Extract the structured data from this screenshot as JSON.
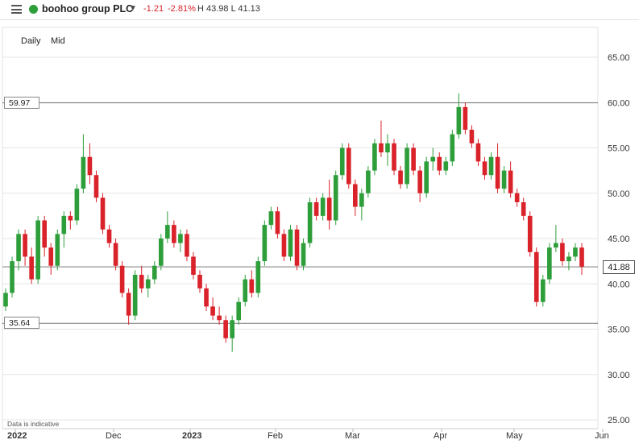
{
  "header": {
    "menu_icon": "hamburger-icon",
    "status_icon": "green-dot-icon",
    "instrument": "boohoo group PLC",
    "change": "-1.21",
    "change_pct": "-2.81%",
    "high_low": "H 43.98 L 41.13",
    "colors": {
      "up": "#2e9e3a",
      "down": "#d9222a",
      "status": "#2e9e3a"
    }
  },
  "periods": [
    "Daily",
    "Mid"
  ],
  "disclaimer": "Data is indicative",
  "chart_data": {
    "type": "candlestick",
    "y_axis": {
      "min": 25,
      "max": 67,
      "ticks": [
        "25.00",
        "30.00",
        "35.00",
        "40.00",
        "45.00",
        "50.00",
        "55.00",
        "60.00",
        "65.00"
      ],
      "position": "right"
    },
    "x_axis": {
      "labels": [
        "2022",
        "Dec",
        "2023",
        "Feb",
        "Mar",
        "Apr",
        "May",
        "Jun"
      ]
    },
    "horizontal_lines": [
      {
        "value": 59.97,
        "label": "59.97"
      },
      {
        "value": 35.64,
        "label": "35.64"
      },
      {
        "value": 41.88,
        "label": "41.88",
        "kind": "last"
      }
    ],
    "candles": [
      [
        37.5,
        39.5,
        37.0,
        39.0
      ],
      [
        39.0,
        43.0,
        38.5,
        42.5
      ],
      [
        42.5,
        46.0,
        41.5,
        45.5
      ],
      [
        45.5,
        46.0,
        42.0,
        43.0
      ],
      [
        43.0,
        44.0,
        40.0,
        40.5
      ],
      [
        40.5,
        47.5,
        40.0,
        47.0
      ],
      [
        47.0,
        47.5,
        43.0,
        44.0
      ],
      [
        44.0,
        44.5,
        41.0,
        42.0
      ],
      [
        42.0,
        46.0,
        41.5,
        45.5
      ],
      [
        45.5,
        48.0,
        44.0,
        47.5
      ],
      [
        47.5,
        48.0,
        46.0,
        47.0
      ],
      [
        47.0,
        51.0,
        46.5,
        50.5
      ],
      [
        50.5,
        56.5,
        50.0,
        54.0
      ],
      [
        54.0,
        55.5,
        51.0,
        52.0
      ],
      [
        52.0,
        52.5,
        49.0,
        49.5
      ],
      [
        49.5,
        50.0,
        45.5,
        46.0
      ],
      [
        46.0,
        46.5,
        44.0,
        44.5
      ],
      [
        44.5,
        45.0,
        41.5,
        42.0
      ],
      [
        42.0,
        42.5,
        38.5,
        39.0
      ],
      [
        39.0,
        39.5,
        35.5,
        36.5
      ],
      [
        36.5,
        41.5,
        36.0,
        41.0
      ],
      [
        41.0,
        42.0,
        39.0,
        39.5
      ],
      [
        39.5,
        41.0,
        38.5,
        40.5
      ],
      [
        40.5,
        42.5,
        40.0,
        42.0
      ],
      [
        42.0,
        45.5,
        41.5,
        45.0
      ],
      [
        45.0,
        48.0,
        44.5,
        46.5
      ],
      [
        46.5,
        47.0,
        44.0,
        44.5
      ],
      [
        44.5,
        46.0,
        43.5,
        45.5
      ],
      [
        45.5,
        46.0,
        42.5,
        43.0
      ],
      [
        43.0,
        43.5,
        40.5,
        41.0
      ],
      [
        41.0,
        41.5,
        39.0,
        39.5
      ],
      [
        39.5,
        40.0,
        37.0,
        37.5
      ],
      [
        37.5,
        38.5,
        36.0,
        36.5
      ],
      [
        36.5,
        37.5,
        35.5,
        36.0
      ],
      [
        36.0,
        36.5,
        33.5,
        34.0
      ],
      [
        34.0,
        36.5,
        32.5,
        36.0
      ],
      [
        36.0,
        38.5,
        35.5,
        38.0
      ],
      [
        38.0,
        41.0,
        37.5,
        40.5
      ],
      [
        40.5,
        41.5,
        38.5,
        39.0
      ],
      [
        39.0,
        43.0,
        38.5,
        42.5
      ],
      [
        42.5,
        47.0,
        42.0,
        46.5
      ],
      [
        46.5,
        48.5,
        46.0,
        48.0
      ],
      [
        48.0,
        48.5,
        45.0,
        45.5
      ],
      [
        45.5,
        46.0,
        42.5,
        43.0
      ],
      [
        43.0,
        46.5,
        42.5,
        46.0
      ],
      [
        46.0,
        46.5,
        41.5,
        42.0
      ],
      [
        42.0,
        45.0,
        41.5,
        44.5
      ],
      [
        44.5,
        49.5,
        44.0,
        49.0
      ],
      [
        49.0,
        49.5,
        47.0,
        47.5
      ],
      [
        47.5,
        50.0,
        47.0,
        49.5
      ],
      [
        49.5,
        51.5,
        46.0,
        47.0
      ],
      [
        47.0,
        52.5,
        46.5,
        52.0
      ],
      [
        52.0,
        55.5,
        51.5,
        55.0
      ],
      [
        55.0,
        55.5,
        50.5,
        51.0
      ],
      [
        51.0,
        51.5,
        47.5,
        48.5
      ],
      [
        48.5,
        50.5,
        47.0,
        50.0
      ],
      [
        50.0,
        53.0,
        49.5,
        52.5
      ],
      [
        52.5,
        56.0,
        52.0,
        55.5
      ],
      [
        55.5,
        58.0,
        54.0,
        54.5
      ],
      [
        54.5,
        56.5,
        53.0,
        55.5
      ],
      [
        55.5,
        56.0,
        52.0,
        52.5
      ],
      [
        52.5,
        53.0,
        50.5,
        51.0
      ],
      [
        51.0,
        55.5,
        50.5,
        55.0
      ],
      [
        55.0,
        55.5,
        52.0,
        52.5
      ],
      [
        52.5,
        53.0,
        49.0,
        50.0
      ],
      [
        50.0,
        54.0,
        49.5,
        53.5
      ],
      [
        53.5,
        55.0,
        52.5,
        54.0
      ],
      [
        54.0,
        54.5,
        52.0,
        52.5
      ],
      [
        52.5,
        54.0,
        52.0,
        53.5
      ],
      [
        53.5,
        57.0,
        53.0,
        56.5
      ],
      [
        56.5,
        61.0,
        56.0,
        59.5
      ],
      [
        59.5,
        60.0,
        56.5,
        57.0
      ],
      [
        57.0,
        57.5,
        55.0,
        55.5
      ],
      [
        55.5,
        56.0,
        53.0,
        53.5
      ],
      [
        53.5,
        54.0,
        51.5,
        52.0
      ],
      [
        52.0,
        54.5,
        51.5,
        54.0
      ],
      [
        54.0,
        55.5,
        50.0,
        50.5
      ],
      [
        50.5,
        53.0,
        50.0,
        52.5
      ],
      [
        52.5,
        53.5,
        49.5,
        50.0
      ],
      [
        50.0,
        50.5,
        48.5,
        49.0
      ],
      [
        49.0,
        49.5,
        47.0,
        47.5
      ],
      [
        47.5,
        48.0,
        43.0,
        43.5
      ],
      [
        43.5,
        44.0,
        37.5,
        38.0
      ],
      [
        38.0,
        41.0,
        37.5,
        40.5
      ],
      [
        40.5,
        44.5,
        40.0,
        44.0
      ],
      [
        44.0,
        46.5,
        43.5,
        44.5
      ],
      [
        44.5,
        45.0,
        42.0,
        42.5
      ],
      [
        42.5,
        43.5,
        41.5,
        43.0
      ],
      [
        43.0,
        44.5,
        42.5,
        44.0
      ],
      [
        44.0,
        44.5,
        41.0,
        41.88
      ]
    ]
  }
}
